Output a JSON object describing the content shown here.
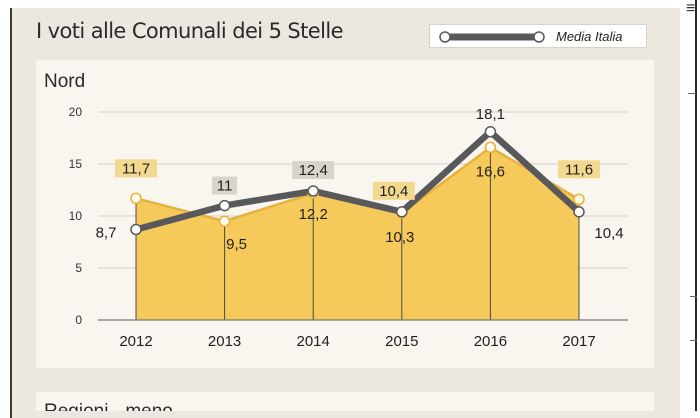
{
  "title": "I voti alle Comunali dei 5 Stelle",
  "legend": {
    "label": "Media Italia"
  },
  "panel_title": "Nord",
  "next_panel_title": "Regioni - meno",
  "colors": {
    "area": "#f5c95a",
    "area_stroke": "#e6b23e",
    "line": "#59595b",
    "label_bg_area": "#f3d98f",
    "label_bg_line": "#d9d4c9"
  },
  "chart_data": {
    "type": "line",
    "title": "Nord",
    "categories": [
      "2012",
      "2013",
      "2014",
      "2015",
      "2016",
      "2017"
    ],
    "ylim": [
      0,
      20
    ],
    "yticks": [
      0,
      5,
      10,
      15,
      20
    ],
    "grid": true,
    "series": [
      {
        "key": "nord",
        "kind": "area",
        "values": [
          11.7,
          9.5,
          12.2,
          10.3,
          16.6,
          11.6
        ],
        "labels": [
          "11,7",
          "9,5",
          "12,2",
          "10,3",
          "16,6",
          "11,6"
        ]
      },
      {
        "key": "media",
        "name": "Media Italia",
        "kind": "line",
        "values": [
          8.7,
          11,
          12.4,
          10.4,
          18.1,
          10.4
        ],
        "labels": [
          "8,7",
          "11",
          "12,4",
          "10,4",
          "18,1",
          "10,4"
        ]
      }
    ]
  }
}
